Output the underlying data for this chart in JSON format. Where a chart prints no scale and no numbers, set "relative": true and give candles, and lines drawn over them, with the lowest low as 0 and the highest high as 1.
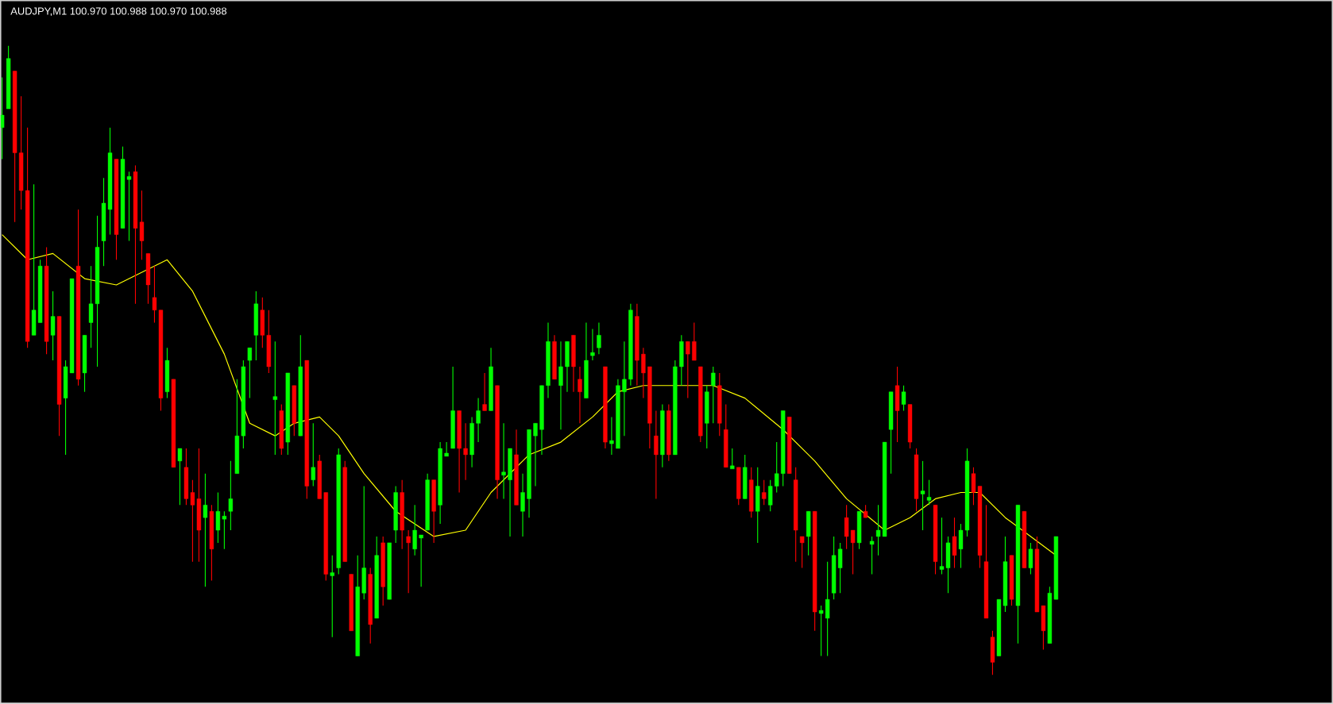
{
  "chart_data": {
    "type": "candlestick",
    "title": "AUDJPY,M1 100.970 100.988 100.970 100.988",
    "relative": true,
    "categories": [
      null,
      null,
      null,
      null,
      null,
      null,
      null,
      null,
      null,
      null,
      null,
      null,
      null,
      null,
      null,
      null,
      null,
      null,
      null,
      null,
      null,
      null,
      null,
      null,
      null,
      null,
      null,
      null,
      null,
      null,
      null,
      null,
      null,
      null,
      null,
      null,
      null,
      null,
      null,
      null,
      null,
      null,
      null,
      null,
      null,
      null,
      null,
      null,
      null,
      null,
      null,
      null,
      null,
      null,
      null,
      null,
      null,
      null,
      null,
      null,
      null,
      null,
      null,
      null,
      null,
      null,
      null,
      null,
      null,
      null,
      null,
      null,
      null,
      null,
      null,
      null,
      null,
      null,
      null,
      null,
      null,
      null,
      null,
      null,
      null,
      null,
      null,
      null,
      null,
      null,
      null,
      null,
      null,
      null,
      null,
      null,
      null,
      null,
      null,
      null,
      null,
      null,
      null,
      null,
      null,
      null,
      null,
      null,
      null,
      null,
      null,
      null,
      null,
      null,
      null,
      null,
      null,
      null,
      null,
      null,
      null,
      null,
      null,
      null,
      null,
      null,
      null,
      null,
      null,
      null,
      null,
      null,
      null,
      null,
      null,
      null,
      null,
      null,
      null,
      null,
      null,
      null,
      null,
      null,
      null,
      null,
      null,
      null,
      null,
      null,
      null,
      null,
      null,
      null,
      null,
      null,
      null,
      null,
      null,
      null,
      null,
      null,
      null,
      null,
      null,
      null,
      null
    ],
    "ohlc": [
      [
        0.87,
        0.95,
        0.82,
        0.89
      ],
      [
        0.9,
        1.0,
        0.9,
        0.98
      ],
      [
        0.96,
        0.96,
        0.72,
        0.83
      ],
      [
        0.83,
        0.92,
        0.74,
        0.77
      ],
      [
        0.77,
        0.87,
        0.52,
        0.53
      ],
      [
        0.54,
        0.78,
        0.54,
        0.58
      ],
      [
        0.56,
        0.66,
        0.56,
        0.65
      ],
      [
        0.65,
        0.68,
        0.51,
        0.53
      ],
      [
        0.54,
        0.61,
        0.5,
        0.57
      ],
      [
        0.57,
        0.57,
        0.38,
        0.43
      ],
      [
        0.44,
        0.5,
        0.35,
        0.49
      ],
      [
        0.48,
        0.63,
        0.48,
        0.63
      ],
      [
        0.65,
        0.74,
        0.46,
        0.47
      ],
      [
        0.48,
        0.54,
        0.45,
        0.54
      ],
      [
        0.56,
        0.65,
        0.52,
        0.59
      ],
      [
        0.59,
        0.73,
        0.49,
        0.68
      ],
      [
        0.69,
        0.79,
        0.65,
        0.75
      ],
      [
        0.74,
        0.87,
        0.7,
        0.83
      ],
      [
        0.82,
        0.82,
        0.66,
        0.7
      ],
      [
        0.71,
        0.84,
        0.71,
        0.82
      ],
      [
        0.79,
        0.8,
        0.69,
        0.79
      ],
      [
        0.8,
        0.81,
        0.59,
        0.71
      ],
      [
        0.72,
        0.77,
        0.66,
        0.69
      ],
      [
        0.67,
        0.67,
        0.59,
        0.62
      ],
      [
        0.6,
        0.65,
        0.56,
        0.58
      ],
      [
        0.58,
        0.58,
        0.42,
        0.44
      ],
      [
        0.45,
        0.52,
        0.44,
        0.5
      ],
      [
        0.47,
        0.47,
        0.33,
        0.33
      ],
      [
        0.34,
        0.36,
        0.27,
        0.36
      ],
      [
        0.33,
        0.36,
        0.27,
        0.28
      ],
      [
        0.29,
        0.31,
        0.18,
        0.27
      ],
      [
        0.28,
        0.36,
        0.18,
        0.23
      ],
      [
        0.25,
        0.32,
        0.14,
        0.27
      ],
      [
        0.26,
        0.27,
        0.15,
        0.2
      ],
      [
        0.23,
        0.29,
        0.21,
        0.26
      ],
      [
        0.25,
        0.26,
        0.2,
        0.25
      ],
      [
        0.26,
        0.34,
        0.23,
        0.28
      ],
      [
        0.32,
        0.47,
        0.32,
        0.38
      ],
      [
        0.38,
        0.5,
        0.36,
        0.49
      ],
      [
        0.5,
        0.52,
        0.44,
        0.52
      ],
      [
        0.54,
        0.61,
        0.5,
        0.59
      ],
      [
        0.58,
        0.6,
        0.52,
        0.54
      ],
      [
        0.54,
        0.58,
        0.48,
        0.49
      ],
      [
        0.44,
        0.53,
        0.35,
        0.44
      ],
      [
        0.42,
        0.43,
        0.35,
        0.36
      ],
      [
        0.37,
        0.48,
        0.35,
        0.48
      ],
      [
        0.46,
        0.46,
        0.38,
        0.4
      ],
      [
        0.38,
        0.54,
        0.38,
        0.49
      ],
      [
        0.5,
        0.5,
        0.28,
        0.3
      ],
      [
        0.31,
        0.4,
        0.3,
        0.33
      ],
      [
        0.34,
        0.35,
        0.28,
        0.28
      ],
      [
        0.29,
        0.29,
        0.15,
        0.16
      ],
      [
        0.16,
        0.19,
        0.06,
        0.16
      ],
      [
        0.17,
        0.36,
        0.16,
        0.35
      ],
      [
        0.33,
        0.34,
        0.18,
        0.18
      ],
      [
        0.16,
        0.16,
        0.07,
        0.07
      ],
      [
        0.03,
        0.19,
        0.03,
        0.14
      ],
      [
        0.13,
        0.3,
        0.12,
        0.17
      ],
      [
        0.16,
        0.17,
        0.05,
        0.08
      ],
      [
        0.09,
        0.22,
        0.09,
        0.19
      ],
      [
        0.21,
        0.22,
        0.11,
        0.14
      ],
      [
        0.12,
        0.21,
        0.12,
        0.21
      ],
      [
        0.23,
        0.3,
        0.21,
        0.29
      ],
      [
        0.29,
        0.31,
        0.2,
        0.23
      ],
      [
        0.22,
        0.23,
        0.13,
        0.21
      ],
      [
        0.2,
        0.27,
        0.19,
        0.23
      ],
      [
        0.22,
        0.22,
        0.14,
        0.22
      ],
      [
        0.23,
        0.32,
        0.23,
        0.31
      ],
      [
        0.31,
        0.31,
        0.21,
        0.26
      ],
      [
        0.27,
        0.37,
        0.24,
        0.36
      ],
      [
        0.35,
        0.37,
        0.35,
        0.35
      ],
      [
        0.36,
        0.49,
        0.36,
        0.42
      ],
      [
        0.42,
        0.42,
        0.29,
        0.36
      ],
      [
        0.36,
        0.4,
        0.31,
        0.35
      ],
      [
        0.35,
        0.41,
        0.33,
        0.4
      ],
      [
        0.4,
        0.44,
        0.37,
        0.42
      ],
      [
        0.43,
        0.48,
        0.42,
        0.42
      ],
      [
        0.42,
        0.52,
        0.42,
        0.49
      ],
      [
        0.46,
        0.46,
        0.28,
        0.31
      ],
      [
        0.32,
        0.4,
        0.28,
        0.32
      ],
      [
        0.31,
        0.36,
        0.22,
        0.36
      ],
      [
        0.35,
        0.39,
        0.27,
        0.27
      ],
      [
        0.26,
        0.32,
        0.22,
        0.29
      ],
      [
        0.28,
        0.39,
        0.25,
        0.39
      ],
      [
        0.38,
        0.4,
        0.3,
        0.4
      ],
      [
        0.39,
        0.46,
        0.35,
        0.46
      ],
      [
        0.46,
        0.56,
        0.44,
        0.53
      ],
      [
        0.53,
        0.54,
        0.47,
        0.47
      ],
      [
        0.46,
        0.53,
        0.39,
        0.49
      ],
      [
        0.49,
        0.53,
        0.45,
        0.53
      ],
      [
        0.54,
        0.54,
        0.45,
        0.49
      ],
      [
        0.47,
        0.49,
        0.4,
        0.45
      ],
      [
        0.44,
        0.56,
        0.44,
        0.5
      ],
      [
        0.51,
        0.55,
        0.5,
        0.51
      ],
      [
        0.52,
        0.56,
        0.51,
        0.54
      ],
      [
        0.49,
        0.49,
        0.36,
        0.37
      ],
      [
        0.37,
        0.41,
        0.35,
        0.37
      ],
      [
        0.36,
        0.47,
        0.36,
        0.46
      ],
      [
        0.45,
        0.53,
        0.38,
        0.47
      ],
      [
        0.47,
        0.59,
        0.46,
        0.58
      ],
      [
        0.57,
        0.59,
        0.46,
        0.5
      ],
      [
        0.51,
        0.52,
        0.44,
        0.48
      ],
      [
        0.49,
        0.49,
        0.36,
        0.4
      ],
      [
        0.38,
        0.42,
        0.28,
        0.35
      ],
      [
        0.35,
        0.43,
        0.33,
        0.42
      ],
      [
        0.42,
        0.43,
        0.34,
        0.35
      ],
      [
        0.35,
        0.5,
        0.35,
        0.49
      ],
      [
        0.49,
        0.54,
        0.46,
        0.53
      ],
      [
        0.53,
        0.53,
        0.44,
        0.51
      ],
      [
        0.53,
        0.56,
        0.5,
        0.5
      ],
      [
        0.49,
        0.49,
        0.37,
        0.38
      ],
      [
        0.4,
        0.46,
        0.36,
        0.45
      ],
      [
        0.46,
        0.49,
        0.4,
        0.48
      ],
      [
        0.46,
        0.48,
        0.38,
        0.4
      ],
      [
        0.39,
        0.43,
        0.33,
        0.33
      ],
      [
        0.33,
        0.36,
        0.33,
        0.33
      ],
      [
        0.33,
        0.33,
        0.27,
        0.28
      ],
      [
        0.28,
        0.35,
        0.28,
        0.33
      ],
      [
        0.31,
        0.33,
        0.25,
        0.26
      ],
      [
        0.26,
        0.33,
        0.21,
        0.3
      ],
      [
        0.29,
        0.31,
        0.27,
        0.28
      ],
      [
        0.27,
        0.31,
        0.26,
        0.3
      ],
      [
        0.3,
        0.37,
        0.29,
        0.32
      ],
      [
        0.32,
        0.42,
        0.3,
        0.42
      ],
      [
        0.41,
        0.41,
        0.32,
        0.32
      ],
      [
        0.31,
        0.33,
        0.18,
        0.23
      ],
      [
        0.22,
        0.22,
        0.17,
        0.21
      ],
      [
        0.22,
        0.26,
        0.19,
        0.26
      ],
      [
        0.26,
        0.26,
        0.07,
        0.1
      ],
      [
        0.1,
        0.11,
        0.03,
        0.1
      ],
      [
        0.09,
        0.18,
        0.03,
        0.12
      ],
      [
        0.13,
        0.22,
        0.12,
        0.19
      ],
      [
        0.17,
        0.21,
        0.13,
        0.2
      ],
      [
        0.25,
        0.27,
        0.2,
        0.22
      ],
      [
        0.23,
        0.23,
        0.16,
        0.21
      ],
      [
        0.21,
        0.26,
        0.2,
        0.26
      ],
      [
        0.26,
        0.27,
        0.25,
        0.25
      ],
      [
        0.21,
        0.22,
        0.16,
        0.21
      ],
      [
        0.22,
        0.27,
        0.19,
        0.23
      ],
      [
        0.22,
        0.37,
        0.22,
        0.37
      ],
      [
        0.39,
        0.45,
        0.32,
        0.45
      ],
      [
        0.46,
        0.49,
        0.37,
        0.42
      ],
      [
        0.43,
        0.46,
        0.42,
        0.45
      ],
      [
        0.43,
        0.43,
        0.36,
        0.37
      ],
      [
        0.35,
        0.36,
        0.26,
        0.28
      ],
      [
        0.29,
        0.34,
        0.23,
        0.29
      ],
      [
        0.28,
        0.31,
        0.27,
        0.28
      ],
      [
        0.27,
        0.27,
        0.16,
        0.18
      ],
      [
        0.17,
        0.25,
        0.16,
        0.17
      ],
      [
        0.17,
        0.22,
        0.13,
        0.21
      ],
      [
        0.22,
        0.25,
        0.17,
        0.19
      ],
      [
        0.2,
        0.24,
        0.17,
        0.23
      ],
      [
        0.23,
        0.36,
        0.22,
        0.34
      ],
      [
        0.32,
        0.33,
        0.27,
        0.29
      ],
      [
        0.3,
        0.3,
        0.17,
        0.19
      ],
      [
        0.18,
        0.27,
        0.09,
        0.09
      ],
      [
        0.06,
        0.07,
        0,
        0.02
      ],
      [
        0.03,
        0.12,
        0.03,
        0.12
      ],
      [
        0.11,
        0.22,
        0.1,
        0.18
      ],
      [
        0.19,
        0.19,
        0.11,
        0.12
      ],
      [
        0.11,
        0.27,
        0.05,
        0.27
      ],
      [
        0.26,
        0.26,
        0.17,
        0.17
      ],
      [
        0.17,
        0.21,
        0.16,
        0.2
      ],
      [
        0.2,
        0.22,
        0.1,
        0.1
      ],
      [
        0.11,
        0.11,
        0.04,
        0.07
      ],
      [
        0.05,
        0.14,
        0.05,
        0.13
      ],
      [
        0.12,
        0.22,
        0.12,
        0.22
      ]
    ],
    "colors": [
      "#00ff00",
      "#00ff00",
      "#ff0000",
      "#ff0000",
      "#ff0000",
      "#00ff00",
      "#00ff00",
      "#ff0000",
      "#00ff00",
      "#ff0000",
      "#00ff00",
      "#00ff00",
      "#ff0000",
      "#00ff00",
      "#00ff00",
      "#00ff00",
      "#00ff00",
      "#00ff00",
      "#ff0000",
      "#00ff00",
      "#00ff00",
      "#ff0000",
      "#ff0000",
      "#ff0000",
      "#ff0000",
      "#ff0000",
      "#00ff00",
      "#ff0000",
      "#00ff00",
      "#ff0000",
      "#ff0000",
      "#ff0000",
      "#00ff00",
      "#ff0000",
      "#00ff00",
      "#00ff00",
      "#00ff00",
      "#00ff00",
      "#00ff00",
      "#00ff00",
      "#00ff00",
      "#ff0000",
      "#ff0000",
      "#00ff00",
      "#ff0000",
      "#00ff00",
      "#ff0000",
      "#00ff00",
      "#ff0000",
      "#00ff00",
      "#ff0000",
      "#ff0000",
      "#00ff00",
      "#00ff00",
      "#ff0000",
      "#ff0000",
      "#00ff00",
      "#00ff00",
      "#ff0000",
      "#00ff00",
      "#ff0000",
      "#00ff00",
      "#00ff00",
      "#ff0000",
      "#ff0000",
      "#00ff00",
      "#00ff00",
      "#00ff00",
      "#ff0000",
      "#00ff00",
      "#00ff00",
      "#00ff00",
      "#ff0000",
      "#ff0000",
      "#00ff00",
      "#00ff00",
      "#ff0000",
      "#00ff00",
      "#ff0000",
      "#00ff00",
      "#00ff00",
      "#ff0000",
      "#00ff00",
      "#00ff00",
      "#00ff00",
      "#00ff00",
      "#00ff00",
      "#ff0000",
      "#00ff00",
      "#00ff00",
      "#ff0000",
      "#ff0000",
      "#00ff00",
      "#00ff00",
      "#00ff00",
      "#ff0000",
      "#00ff00",
      "#00ff00",
      "#00ff00",
      "#00ff00",
      "#ff0000",
      "#ff0000",
      "#ff0000",
      "#ff0000",
      "#00ff00",
      "#ff0000",
      "#00ff00",
      "#00ff00",
      "#ff0000",
      "#ff0000",
      "#ff0000",
      "#00ff00",
      "#00ff00",
      "#ff0000",
      "#ff0000",
      "#00ff00",
      "#ff0000",
      "#00ff00",
      "#ff0000",
      "#00ff00",
      "#ff0000",
      "#00ff00",
      "#00ff00",
      "#00ff00",
      "#ff0000",
      "#ff0000",
      "#ff0000",
      "#00ff00",
      "#ff0000",
      "#00ff00",
      "#00ff00",
      "#00ff00",
      "#00ff00",
      "#ff0000",
      "#ff0000",
      "#00ff00",
      "#ff0000",
      "#00ff00",
      "#00ff00",
      "#00ff00",
      "#00ff00",
      "#ff0000",
      "#00ff00",
      "#ff0000",
      "#ff0000",
      "#00ff00",
      "#00ff00",
      "#ff0000",
      "#00ff00",
      "#00ff00",
      "#ff0000",
      "#00ff00",
      "#00ff00",
      "#ff0000",
      "#ff0000",
      "#ff0000",
      "#ff0000",
      "#00ff00",
      "#00ff00",
      "#ff0000",
      "#00ff00",
      "#ff0000",
      "#00ff00",
      "#ff0000",
      "#ff0000",
      "#00ff00",
      "#00ff00"
    ],
    "series": [
      {
        "type": "line",
        "color": "#ffff00",
        "values": [
          0.7,
          null,
          null,
          null,
          0.66,
          null,
          null,
          null,
          0.67,
          null,
          null,
          null,
          null,
          0.63,
          null,
          null,
          null,
          null,
          0.62,
          null,
          null,
          null,
          null,
          null,
          null,
          null,
          0.66,
          null,
          null,
          null,
          0.61,
          null,
          null,
          null,
          null,
          0.51,
          null,
          null,
          null,
          0.4,
          null,
          null,
          null,
          0.38,
          null,
          null,
          0.4,
          null,
          null,
          null,
          0.41,
          null,
          null,
          0.38,
          null,
          null,
          null,
          0.32,
          null,
          null,
          null,
          null,
          0.26,
          null,
          null,
          null,
          null,
          null,
          0.22,
          null,
          null,
          null,
          null,
          0.23,
          null,
          null,
          null,
          0.29,
          null,
          null,
          null,
          null,
          null,
          0.35,
          null,
          null,
          null,
          null,
          0.37,
          null,
          null,
          null,
          null,
          0.41,
          null,
          null,
          null,
          0.45,
          null,
          null,
          null,
          0.46,
          null,
          null,
          null,
          null,
          null,
          0.46,
          null,
          null,
          null,
          null,
          0.46,
          null,
          null,
          null,
          null,
          0.44,
          null,
          null,
          null,
          null,
          null,
          0.39,
          null,
          null,
          null,
          null,
          0.34,
          null,
          null,
          null,
          null,
          0.28,
          null,
          null,
          null,
          null,
          null,
          0.23,
          null,
          null,
          null,
          0.25,
          null,
          null,
          null,
          0.28,
          null,
          null,
          null,
          0.29,
          null,
          null,
          0.29,
          null,
          null,
          null,
          0.25,
          null,
          null,
          null,
          0.22,
          null,
          null,
          null,
          0.19
        ]
      }
    ]
  }
}
